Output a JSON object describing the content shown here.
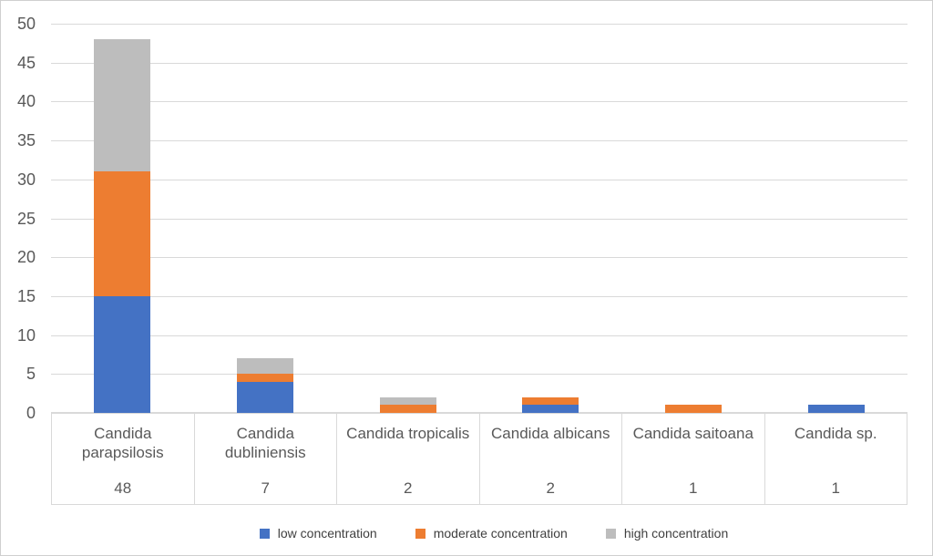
{
  "chart_data": {
    "type": "bar",
    "stacked": true,
    "categories": [
      "Candida parapsilosis",
      "Candida dubliniensis",
      "Candida tropicalis",
      "Candida albicans",
      "Candida saitoana",
      "Candida sp."
    ],
    "totals": [
      48,
      7,
      2,
      2,
      1,
      1
    ],
    "series": [
      {
        "name": "low concentration",
        "color": "#4472C4",
        "values": [
          15,
          4,
          0,
          1,
          0,
          1
        ]
      },
      {
        "name": "moderate concentration",
        "color": "#ED7D31",
        "values": [
          16,
          1,
          1,
          1,
          1,
          0
        ]
      },
      {
        "name": "high concentration",
        "color": "#BDBDBD",
        "values": [
          17,
          2,
          1,
          0,
          0,
          0
        ]
      }
    ],
    "ylim": [
      0,
      50
    ],
    "ytick_step": 5,
    "yticks": [
      0,
      5,
      10,
      15,
      20,
      25,
      30,
      35,
      40,
      45,
      50
    ],
    "grid": true,
    "legend_position": "bottom"
  }
}
